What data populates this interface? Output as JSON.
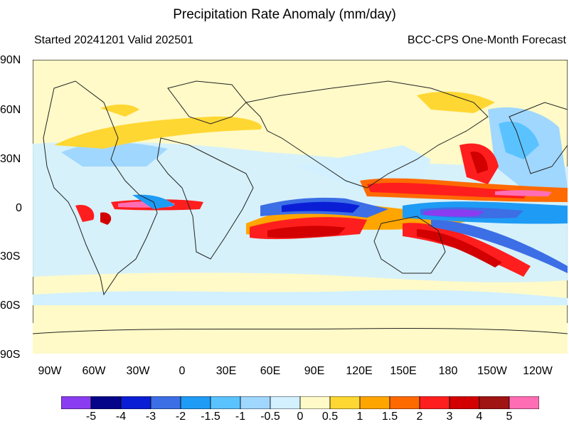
{
  "title": "Precipitation Rate Anomaly (mm/day)",
  "subtitle_left": "Started 20241201  Valid 202501",
  "subtitle_right": "BCC-CPS One-Month Forecast",
  "lat_labels": [
    "90N",
    "60N",
    "30N",
    "0",
    "30S",
    "60S",
    "90S"
  ],
  "lon_labels": [
    "90W",
    "60W",
    "30W",
    "0",
    "30E",
    "60E",
    "90E",
    "120E",
    "150E",
    "180",
    "150W",
    "120W"
  ],
  "colorbar": {
    "colors": [
      "#8a3cf0",
      "#05058a",
      "#0a1ed6",
      "#3c6ee6",
      "#1e9bf5",
      "#5ac3ff",
      "#a0d7ff",
      "#d2f0ff",
      "#fffac8",
      "#ffd732",
      "#ffa500",
      "#ff6a00",
      "#ff1e1e",
      "#d20000",
      "#a01414",
      "#ff6eb4"
    ],
    "labels": [
      "-5",
      "-4",
      "-3",
      "-2",
      "-1.5",
      "-1",
      "-0.5",
      "0",
      "0.5",
      "1",
      "1.5",
      "2",
      "3",
      "4",
      "5"
    ]
  }
}
